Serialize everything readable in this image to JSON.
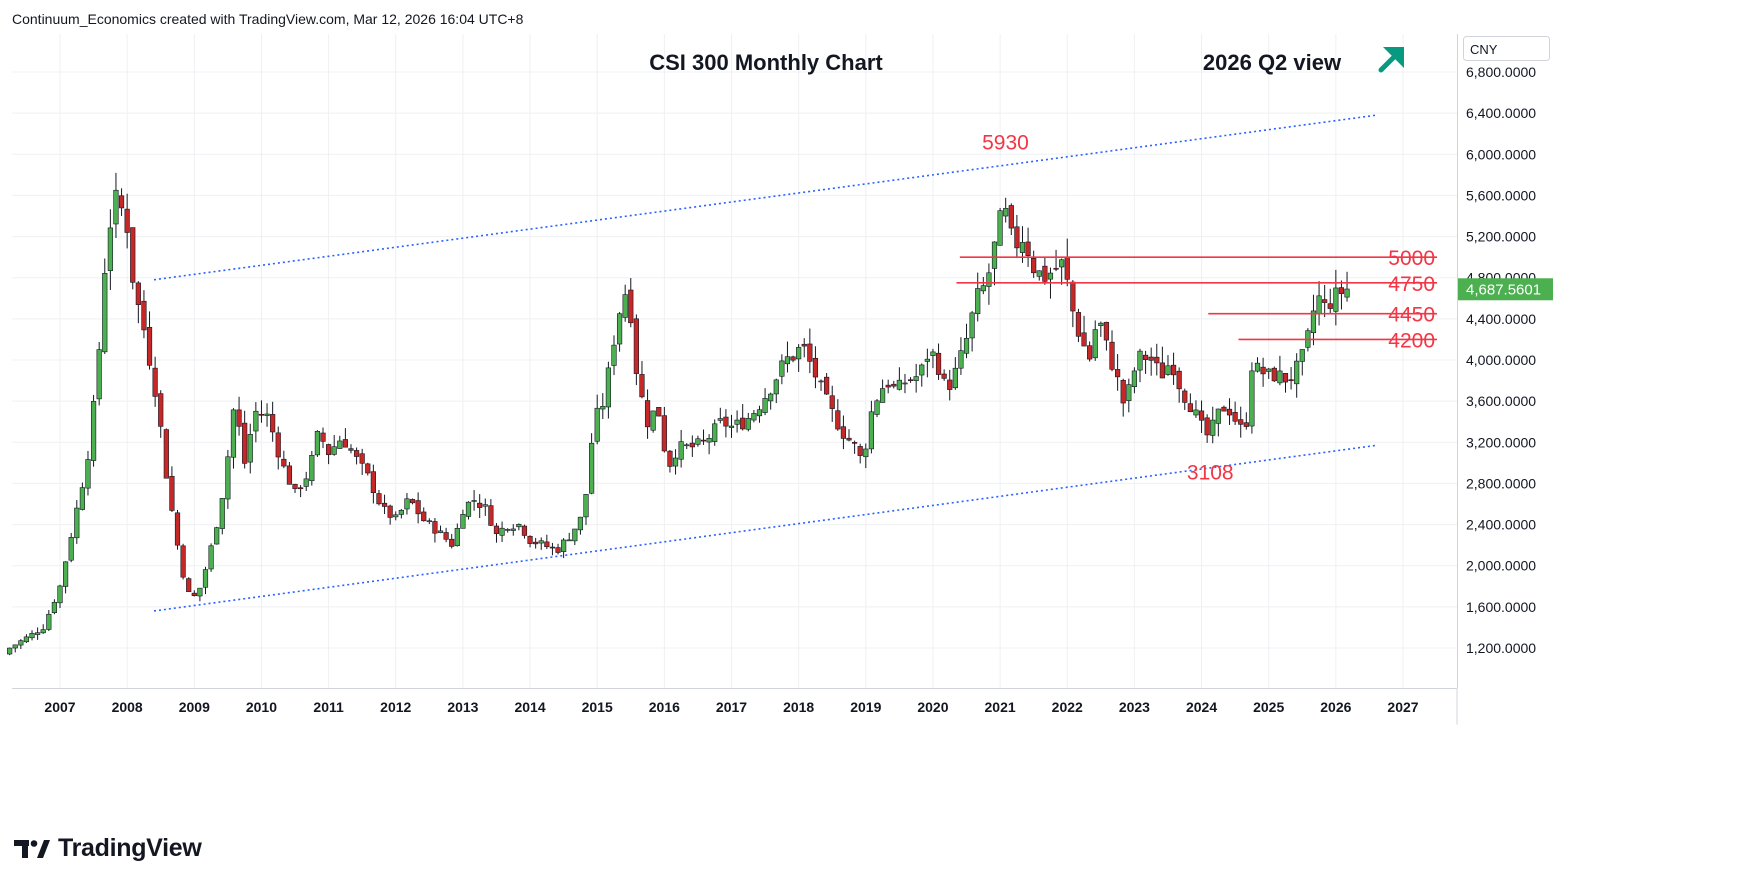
{
  "header": {
    "credit": "Continuum_Economics created with TradingView.com, Mar 12, 2026 16:04 UTC+8"
  },
  "footer": {
    "brand": "TradingView"
  },
  "colors": {
    "up": "#4caf50",
    "down": "#c62828",
    "level": "#f23645",
    "channel": "#2962ff",
    "last_price_bg": "#4caf50",
    "arrow": "#089981",
    "grid": "#eef0f3",
    "axis_text": "#131722"
  },
  "chart_data": {
    "type": "candlestick",
    "title": "CSI 300 Monthly Chart",
    "subtitle": "2026 Q2 view",
    "view_arrow": "up-right-arrow",
    "currency": "CNY",
    "last_price": "4,687.5601",
    "ylim": [
      800,
      7000
    ],
    "xlim": [
      2006.25,
      2027.75
    ],
    "y_ticks": [
      {
        "value": 1200,
        "label": "1,200.0000"
      },
      {
        "value": 1600,
        "label": "1,600.0000"
      },
      {
        "value": 2000,
        "label": "2,000.0000"
      },
      {
        "value": 2400,
        "label": "2,400.0000"
      },
      {
        "value": 2800,
        "label": "2,800.0000"
      },
      {
        "value": 3200,
        "label": "3,200.0000"
      },
      {
        "value": 3600,
        "label": "3,600.0000"
      },
      {
        "value": 4000,
        "label": "4,000.0000"
      },
      {
        "value": 4400,
        "label": "4,400.0000"
      },
      {
        "value": 4800,
        "label": "4,800.0000"
      },
      {
        "value": 5200,
        "label": "5,200.0000"
      },
      {
        "value": 5600,
        "label": "5,600.0000"
      },
      {
        "value": 6000,
        "label": "6,000.0000"
      },
      {
        "value": 6400,
        "label": "6,400.0000"
      },
      {
        "value": 6800,
        "label": "6,800.0000"
      }
    ],
    "x_ticks": [
      "2007",
      "2008",
      "2009",
      "2010",
      "2011",
      "2012",
      "2013",
      "2014",
      "2015",
      "2016",
      "2017",
      "2018",
      "2019",
      "2020",
      "2021",
      "2022",
      "2023",
      "2024",
      "2025",
      "2026",
      "2027"
    ],
    "key_close_path": [
      [
        2006.25,
        1200
      ],
      [
        2006.5,
        1300
      ],
      [
        2006.75,
        1400
      ],
      [
        2007.0,
        1800
      ],
      [
        2007.2,
        2400
      ],
      [
        2007.4,
        3000
      ],
      [
        2007.55,
        3800
      ],
      [
        2007.7,
        5200
      ],
      [
        2007.85,
        5600
      ],
      [
        2008.0,
        5300
      ],
      [
        2008.1,
        4700
      ],
      [
        2008.25,
        4300
      ],
      [
        2008.45,
        3600
      ],
      [
        2008.6,
        2800
      ],
      [
        2008.8,
        2000
      ],
      [
        2008.95,
        1650
      ],
      [
        2009.1,
        1800
      ],
      [
        2009.3,
        2300
      ],
      [
        2009.45,
        2800
      ],
      [
        2009.6,
        3600
      ],
      [
        2009.75,
        3000
      ],
      [
        2009.9,
        3500
      ],
      [
        2010.1,
        3450
      ],
      [
        2010.3,
        3000
      ],
      [
        2010.5,
        2700
      ],
      [
        2010.7,
        2900
      ],
      [
        2010.85,
        3300
      ],
      [
        2011.0,
        3100
      ],
      [
        2011.2,
        3250
      ],
      [
        2011.4,
        3050
      ],
      [
        2011.6,
        2850
      ],
      [
        2011.8,
        2550
      ],
      [
        2012.0,
        2450
      ],
      [
        2012.2,
        2650
      ],
      [
        2012.4,
        2450
      ],
      [
        2012.6,
        2350
      ],
      [
        2012.85,
        2200
      ],
      [
        2013.0,
        2550
      ],
      [
        2013.15,
        2650
      ],
      [
        2013.35,
        2550
      ],
      [
        2013.5,
        2300
      ],
      [
        2013.65,
        2400
      ],
      [
        2013.85,
        2400
      ],
      [
        2014.0,
        2250
      ],
      [
        2014.2,
        2200
      ],
      [
        2014.4,
        2150
      ],
      [
        2014.6,
        2300
      ],
      [
        2014.8,
        2500
      ],
      [
        2014.95,
        3400
      ],
      [
        2015.1,
        3600
      ],
      [
        2015.25,
        4200
      ],
      [
        2015.4,
        4700
      ],
      [
        2015.5,
        4450
      ],
      [
        2015.6,
        3800
      ],
      [
        2015.75,
        3400
      ],
      [
        2015.9,
        3550
      ],
      [
        2016.05,
        2950
      ],
      [
        2016.2,
        3150
      ],
      [
        2016.4,
        3150
      ],
      [
        2016.6,
        3200
      ],
      [
        2016.85,
        3400
      ],
      [
        2017.0,
        3350
      ],
      [
        2017.2,
        3400
      ],
      [
        2017.4,
        3550
      ],
      [
        2017.6,
        3750
      ],
      [
        2017.8,
        4000
      ],
      [
        2017.95,
        4050
      ],
      [
        2018.05,
        4150
      ],
      [
        2018.25,
        3850
      ],
      [
        2018.45,
        3550
      ],
      [
        2018.65,
        3300
      ],
      [
        2018.85,
        3150
      ],
      [
        2018.95,
        3000
      ],
      [
        2019.1,
        3550
      ],
      [
        2019.3,
        3800
      ],
      [
        2019.45,
        3700
      ],
      [
        2019.6,
        3800
      ],
      [
        2019.8,
        3850
      ],
      [
        2019.95,
        4100
      ],
      [
        2020.05,
        4000
      ],
      [
        2020.2,
        3700
      ],
      [
        2020.35,
        3900
      ],
      [
        2020.5,
        4200
      ],
      [
        2020.65,
        4600
      ],
      [
        2020.8,
        4750
      ],
      [
        2020.95,
        5200
      ],
      [
        2021.05,
        5500
      ],
      [
        2021.2,
        5100
      ],
      [
        2021.35,
        5200
      ],
      [
        2021.5,
        4900
      ],
      [
        2021.65,
        4800
      ],
      [
        2021.85,
        4900
      ],
      [
        2021.95,
        4950
      ],
      [
        2022.05,
        4550
      ],
      [
        2022.2,
        4200
      ],
      [
        2022.35,
        4000
      ],
      [
        2022.45,
        4450
      ],
      [
        2022.6,
        4100
      ],
      [
        2022.75,
        3800
      ],
      [
        2022.85,
        3550
      ],
      [
        2023.0,
        3900
      ],
      [
        2023.1,
        4050
      ],
      [
        2023.25,
        4000
      ],
      [
        2023.4,
        3850
      ],
      [
        2023.55,
        4000
      ],
      [
        2023.7,
        3700
      ],
      [
        2023.85,
        3550
      ],
      [
        2024.0,
        3350
      ],
      [
        2024.1,
        3250
      ],
      [
        2024.3,
        3550
      ],
      [
        2024.45,
        3500
      ],
      [
        2024.55,
        3350
      ],
      [
        2024.65,
        3300
      ],
      [
        2024.75,
        3950
      ],
      [
        2024.85,
        3900
      ],
      [
        2025.0,
        3850
      ],
      [
        2025.15,
        3850
      ],
      [
        2025.3,
        3800
      ],
      [
        2025.45,
        3950
      ],
      [
        2025.55,
        4100
      ],
      [
        2025.65,
        4450
      ],
      [
        2025.75,
        4600
      ],
      [
        2025.85,
        4500
      ],
      [
        2025.95,
        4600
      ],
      [
        2026.05,
        4650
      ],
      [
        2026.15,
        4690
      ]
    ],
    "levels": [
      {
        "label": "5000",
        "value": 5000,
        "x_start": 2020.4
      },
      {
        "label": "4750",
        "value": 4750,
        "x_start": 2020.35
      },
      {
        "label": "4450",
        "value": 4450,
        "x_start": 2024.1
      },
      {
        "label": "4200",
        "value": 4200,
        "x_start": 2024.55
      }
    ],
    "annotations": [
      {
        "label": "5930",
        "x": 2021.05,
        "y": 5930,
        "where": "above"
      },
      {
        "label": "3108",
        "x": 2024.1,
        "y": 3108,
        "where": "below"
      }
    ],
    "channel": {
      "upper": {
        "x": [
          2008.4,
          2026.6
        ],
        "y": [
          4780,
          6380
        ]
      },
      "lower": {
        "x": [
          2008.4,
          2026.6
        ],
        "y": [
          1560,
          3170
        ]
      }
    }
  }
}
